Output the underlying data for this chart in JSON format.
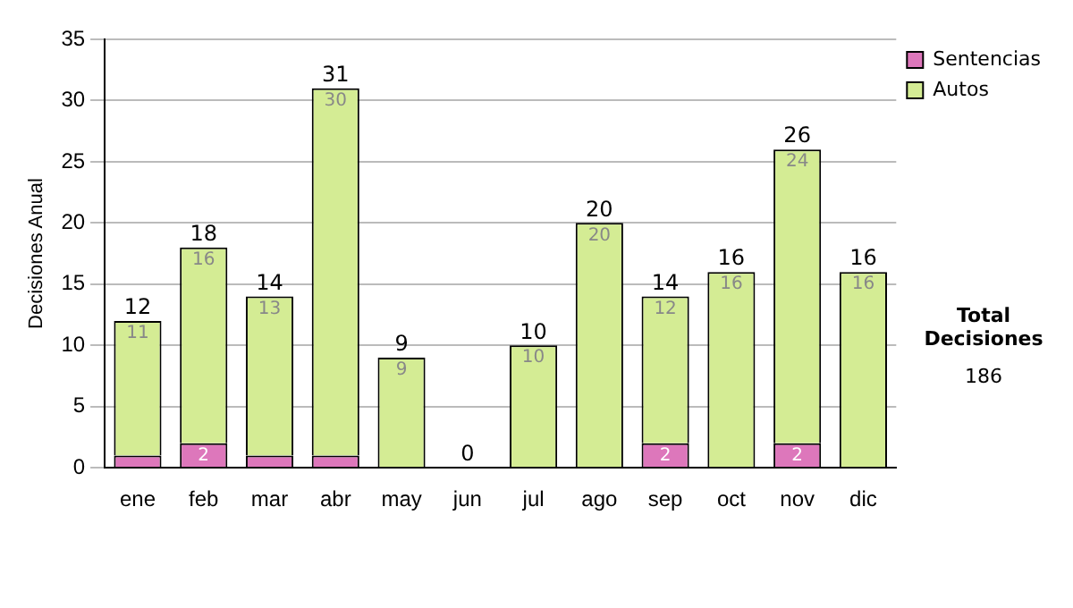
{
  "chart_data": {
    "type": "bar",
    "stacked": true,
    "ylabel": "Decisiones Anual",
    "categories": [
      "ene",
      "feb",
      "mar",
      "abr",
      "may",
      "jun",
      "jul",
      "ago",
      "sep",
      "oct",
      "nov",
      "dic"
    ],
    "series": [
      {
        "name": "Sentencias",
        "color": "#dd77bb",
        "values": [
          1,
          2,
          1,
          1,
          0,
          0,
          0,
          0,
          2,
          0,
          2,
          0
        ],
        "value_labels": [
          null,
          "2",
          null,
          null,
          null,
          null,
          null,
          null,
          "2",
          null,
          "2",
          null
        ]
      },
      {
        "name": "Autos",
        "color": "#d4ec94",
        "values": [
          11,
          16,
          13,
          30,
          9,
          0,
          10,
          20,
          12,
          16,
          24,
          16
        ],
        "value_labels": [
          "11",
          "16",
          "13",
          "30",
          "9",
          null,
          "10",
          "20",
          "12",
          "16",
          "24",
          "16"
        ]
      }
    ],
    "totals": [
      "12",
      "18",
      "14",
      "31",
      "9",
      "0",
      "10",
      "20",
      "14",
      "16",
      "26",
      "16"
    ],
    "ylim": [
      0,
      35
    ],
    "yticks": [
      0,
      5,
      10,
      15,
      20,
      25,
      30,
      35
    ],
    "grid": "y",
    "legend": "right",
    "annotations": [
      "Total Decisiones",
      "186"
    ]
  }
}
